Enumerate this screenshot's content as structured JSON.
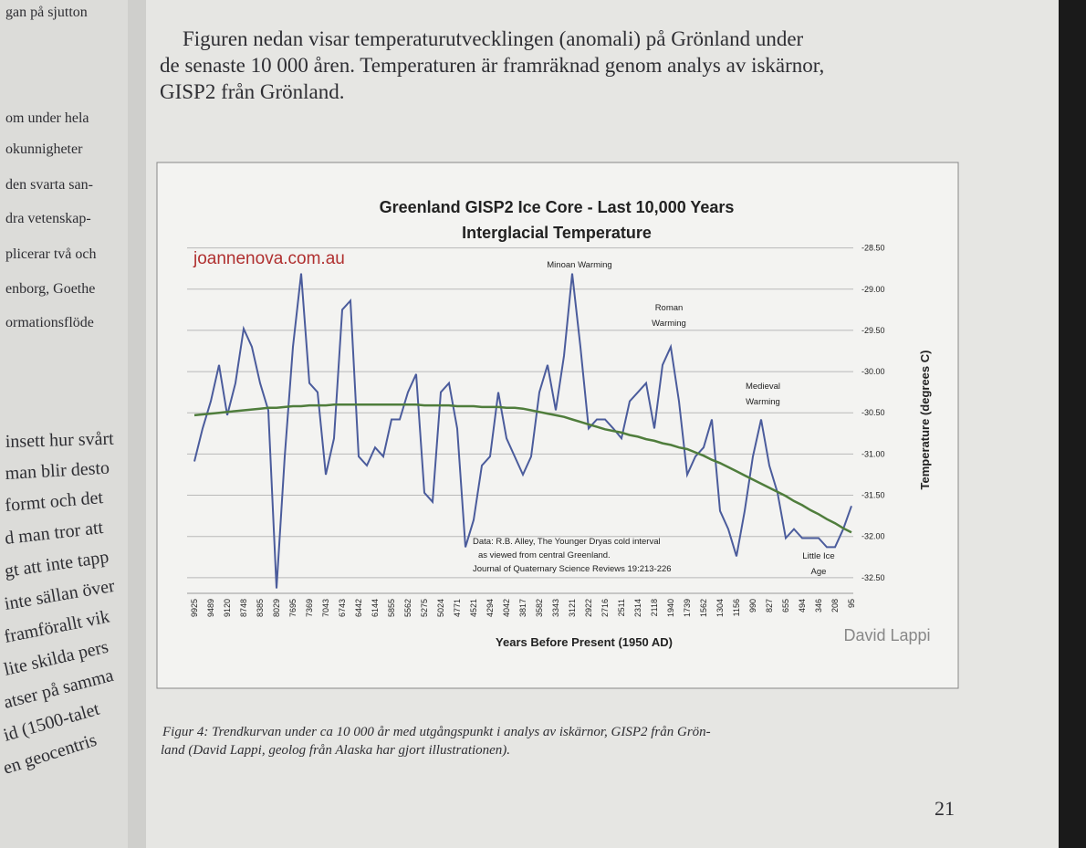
{
  "margin_fragments": [
    "gan på sjutton",
    "om under hela",
    "okunnigheter",
    "den svarta san-",
    "dra vetenskap-",
    "plicerar två och",
    "enborg, Goethe",
    "ormationsflöde",
    "insett hur svårt",
    "man blir desto",
    "formt och det",
    "d man tror att",
    "gt att inte tapp",
    "inte sällan över",
    "framförallt vik",
    "lite skilda pers",
    "atser på samma",
    "id (1500-talet",
    "en geocentris"
  ],
  "paragraph": [
    "Figuren nedan visar temperaturutvecklingen (anomali) på Grönland under",
    "de senaste 10 000 åren. Temperaturen är framräknad genom analys av iskärnor,",
    "GISP2 från Grönland."
  ],
  "caption": [
    "Figur 4: Trendkurvan under ca 10 000 år med utgångspunkt i analys av iskärnor, GISP2 från Grön-",
    "land (David Lappi, geolog från Alaska har gjort illustrationen)."
  ],
  "page_number": "21",
  "chart_data": {
    "type": "line",
    "title": [
      "Greenland GISP2 Ice Core - Last 10,000 Years",
      "Interglacial Temperature"
    ],
    "xlabel": "Years Before Present (1950 AD)",
    "ylabel": "Temperature (degrees C)",
    "watermark": "joannenova.com.au",
    "author": "David Lappi",
    "annotations": [
      [
        "Minoan Warming"
      ],
      [
        "Roman",
        "Warming"
      ],
      [
        "Medieval",
        "Warming"
      ],
      [
        "Little Ice",
        "Age"
      ],
      [
        "Data: R.B. Alley,  The Younger Dryas cold interval",
        "as viewed from central Greenland.",
        "Journal of Quaternary  Science Reviews 19:213-226"
      ]
    ],
    "categories": [
      "9925",
      null,
      "9489",
      null,
      "9120",
      null,
      "8748",
      null,
      "8385",
      null,
      "8029",
      null,
      "7695",
      null,
      "7369",
      null,
      "7043",
      null,
      "6743",
      null,
      "6442",
      null,
      "6144",
      null,
      "5855",
      null,
      "5562",
      null,
      "5275",
      null,
      "5024",
      null,
      "4771",
      null,
      "4521",
      null,
      "4294",
      null,
      "4042",
      null,
      "3817",
      null,
      "3582",
      null,
      "3343",
      null,
      "3121",
      null,
      "2922",
      null,
      "2716",
      null,
      "2511",
      null,
      "2314",
      null,
      "2118",
      null,
      "1940",
      null,
      "1739",
      null,
      "1562",
      null,
      "1304",
      null,
      "1156",
      null,
      "990",
      null,
      "827",
      null,
      "655",
      null,
      "494",
      null,
      "346",
      null,
      "208",
      null,
      "95"
    ],
    "series": [
      {
        "color": "#4b5c9c",
        "values": [
          -31.09,
          -30.69,
          -30.36,
          -29.92,
          -30.53,
          -30.14,
          -29.48,
          -29.7,
          -30.14,
          -30.47,
          -32.63,
          -31.03,
          -29.7,
          -28.81,
          -30.14,
          -30.25,
          -31.25,
          -30.81,
          -29.25,
          -29.14,
          -31.03,
          -31.14,
          -30.92,
          -31.03,
          -30.58,
          -30.58,
          -30.25,
          -30.03,
          -31.47,
          -31.58,
          -30.25,
          -30.14,
          -30.69,
          -32.13,
          -31.8,
          -31.14,
          -31.03,
          -30.25,
          -30.81,
          -31.03,
          -31.25,
          -31.03,
          -30.25,
          -29.92,
          -30.47,
          -29.81,
          -28.81,
          -29.7,
          -30.69,
          -30.58,
          -30.58,
          -30.69,
          -30.81,
          -30.36,
          -30.25,
          -30.14,
          -30.69,
          -29.92,
          -29.7,
          -30.36,
          -31.25,
          -31.03,
          -30.92,
          -30.58,
          -31.69,
          -31.91,
          -32.24,
          -31.69,
          -31.03,
          -30.58,
          -31.14,
          -31.47,
          -32.02,
          -31.91,
          -32.02,
          -32.02,
          -32.02,
          -32.13,
          -32.13,
          -31.91,
          -31.63
        ]
      },
      {
        "color": "#4f7d3c",
        "values": [
          -30.53,
          -30.52,
          -30.51,
          -30.5,
          -30.49,
          -30.48,
          -30.47,
          -30.46,
          -30.45,
          -30.44,
          -30.44,
          -30.43,
          -30.42,
          -30.42,
          -30.41,
          -30.41,
          -30.41,
          -30.4,
          -30.4,
          -30.4,
          -30.4,
          -30.4,
          -30.4,
          -30.4,
          -30.4,
          -30.4,
          -30.4,
          -30.4,
          -30.41,
          -30.41,
          -30.41,
          -30.41,
          -30.42,
          -30.42,
          -30.42,
          -30.43,
          -30.43,
          -30.43,
          -30.44,
          -30.44,
          -30.45,
          -30.47,
          -30.49,
          -30.51,
          -30.53,
          -30.55,
          -30.58,
          -30.61,
          -30.64,
          -30.67,
          -30.7,
          -30.72,
          -30.74,
          -30.77,
          -30.79,
          -30.82,
          -30.84,
          -30.87,
          -30.89,
          -30.92,
          -30.94,
          -30.98,
          -31.02,
          -31.07,
          -31.11,
          -31.16,
          -31.21,
          -31.26,
          -31.31,
          -31.36,
          -31.41,
          -31.46,
          -31.51,
          -31.57,
          -31.62,
          -31.68,
          -31.73,
          -31.79,
          -31.84,
          -31.9,
          -31.95
        ]
      }
    ],
    "ylim": [
      -32.69,
      -28.46
    ],
    "yticks": [
      {
        "value": -28.5,
        "label": "-28.50"
      },
      {
        "value": -29,
        "label": "-29.00"
      },
      {
        "value": -29.5,
        "label": "-29.50"
      },
      {
        "value": -30,
        "label": "-30.00"
      },
      {
        "value": -30.5,
        "label": "-30.50"
      },
      {
        "value": -31,
        "label": "-31.00"
      },
      {
        "value": -31.5,
        "label": "-31.50"
      },
      {
        "value": -32,
        "label": "-32.00"
      },
      {
        "value": -32.5,
        "label": "-32.50"
      }
    ],
    "grid": true
  }
}
